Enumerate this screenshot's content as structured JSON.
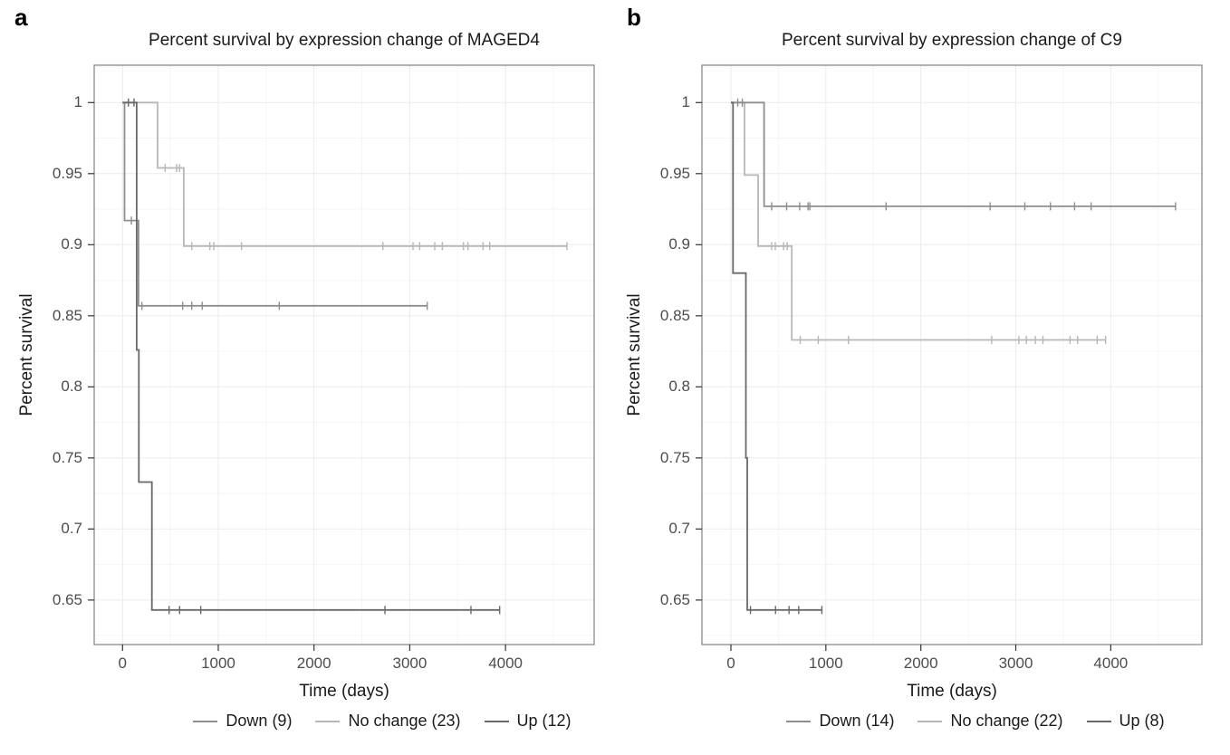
{
  "figure": {
    "description": "Kaplan-Meier percent survival curves by gene expression change, two panels"
  },
  "chart_data": [
    {
      "type": "line",
      "subtype": "kaplan-meier-step",
      "panel_label": "a",
      "title": "Percent survival by expression change of MAGED4",
      "xlabel": "Time (days)",
      "ylabel": "Percent survival",
      "xticks": [
        0,
        1000,
        2000,
        3000,
        4000
      ],
      "xtick_labels": [
        "0",
        "1000",
        "2000",
        "3000",
        "4000"
      ],
      "yticks": [
        1,
        0.95,
        0.9,
        0.85,
        0.8,
        0.75,
        0.7,
        0.65
      ],
      "ytick_labels": [
        "1",
        "0.95",
        "0.9",
        "0.85",
        "0.8",
        "0.75",
        "0.7",
        "0.65"
      ],
      "xlim": [
        -296,
        4926
      ],
      "ylim": [
        0.6187,
        1.0263
      ],
      "grid": "major-and-minor",
      "legend_position": "bottom",
      "series": [
        {
          "name": "Down (9)",
          "color": "#8e8e8e",
          "steps": [
            [
              0,
              1
            ],
            [
              21,
              1
            ],
            [
              21,
              0.917
            ],
            [
              167,
              0.917
            ],
            [
              167,
              0.857
            ],
            [
              3182,
              0.857
            ]
          ],
          "censors": [
            [
              92,
              0.917
            ],
            [
              202,
              0.857
            ],
            [
              628,
              0.857
            ],
            [
              723,
              0.857
            ],
            [
              832,
              0.857
            ],
            [
              1637,
              0.857
            ],
            [
              3182,
              0.857
            ]
          ]
        },
        {
          "name": "No change (23)",
          "color": "#b7b7b7",
          "steps": [
            [
              0,
              1
            ],
            [
              366,
              1
            ],
            [
              366,
              0.954
            ],
            [
              640,
              0.954
            ],
            [
              640,
              0.899
            ],
            [
              4642,
              0.899
            ]
          ],
          "censors": [
            [
              445,
              0.954
            ],
            [
              565,
              0.954
            ],
            [
              596,
              0.954
            ],
            [
              723,
              0.899
            ],
            [
              912,
              0.899
            ],
            [
              953,
              0.899
            ],
            [
              1243,
              0.899
            ],
            [
              2719,
              0.899
            ],
            [
              3034,
              0.899
            ],
            [
              3103,
              0.899
            ],
            [
              3261,
              0.899
            ],
            [
              3340,
              0.899
            ],
            [
              3561,
              0.899
            ],
            [
              3608,
              0.899
            ],
            [
              3765,
              0.899
            ],
            [
              3835,
              0.899
            ],
            [
              4642,
              0.899
            ]
          ]
        },
        {
          "name": "Up (12)",
          "color": "#696969",
          "steps": [
            [
              0,
              1
            ],
            [
              148,
              1
            ],
            [
              148,
              0.826
            ],
            [
              170,
              0.826
            ],
            [
              170,
              0.733
            ],
            [
              307,
              0.733
            ],
            [
              307,
              0.643
            ],
            [
              3939,
              0.643
            ]
          ],
          "censors": [
            [
              61,
              1
            ],
            [
              120,
              1
            ],
            [
              486,
              0.643
            ],
            [
              596,
              0.643
            ],
            [
              817,
              0.643
            ],
            [
              2741,
              0.643
            ],
            [
              3639,
              0.643
            ],
            [
              3939,
              0.643
            ]
          ]
        }
      ]
    },
    {
      "type": "line",
      "subtype": "kaplan-meier-step",
      "panel_label": "b",
      "title": "Percent survival by expression change of C9",
      "xlabel": "Time (days)",
      "ylabel": "Percent survival",
      "xticks": [
        0,
        1000,
        2000,
        3000,
        4000
      ],
      "xtick_labels": [
        "0",
        "1000",
        "2000",
        "3000",
        "4000"
      ],
      "yticks": [
        1,
        0.95,
        0.9,
        0.85,
        0.8,
        0.75,
        0.7,
        0.65
      ],
      "ytick_labels": [
        "1",
        "0.95",
        "0.9",
        "0.85",
        "0.8",
        "0.75",
        "0.7",
        "0.65"
      ],
      "xlim": [
        -305,
        4960
      ],
      "ylim": [
        0.6187,
        1.0263
      ],
      "grid": "major-and-minor",
      "legend_position": "bottom",
      "series": [
        {
          "name": "Down (14)",
          "color": "#8e8e8e",
          "steps": [
            [
              0,
              1
            ],
            [
              349,
              1
            ],
            [
              349,
              0.927
            ],
            [
              4682,
              0.927
            ]
          ],
          "censors": [
            [
              72,
              1
            ],
            [
              120,
              1
            ],
            [
              429,
              0.927
            ],
            [
              587,
              0.927
            ],
            [
              724,
              0.927
            ],
            [
              812,
              0.927
            ],
            [
              831,
              0.927
            ],
            [
              1634,
              0.927
            ],
            [
              2730,
              0.927
            ],
            [
              3095,
              0.927
            ],
            [
              3365,
              0.927
            ],
            [
              3619,
              0.927
            ],
            [
              3793,
              0.927
            ],
            [
              4682,
              0.927
            ]
          ]
        },
        {
          "name": "No change (22)",
          "color": "#b7b7b7",
          "steps": [
            [
              0,
              1
            ],
            [
              143,
              1
            ],
            [
              143,
              0.949
            ],
            [
              286,
              0.949
            ],
            [
              286,
              0.899
            ],
            [
              641,
              0.899
            ],
            [
              641,
              0.833
            ],
            [
              3945,
              0.833
            ]
          ],
          "censors": [
            [
              429,
              0.899
            ],
            [
              467,
              0.899
            ],
            [
              555,
              0.899
            ],
            [
              593,
              0.899
            ],
            [
              730,
              0.833
            ],
            [
              920,
              0.833
            ],
            [
              1238,
              0.833
            ],
            [
              2746,
              0.833
            ],
            [
              3032,
              0.833
            ],
            [
              3111,
              0.833
            ],
            [
              3206,
              0.833
            ],
            [
              3286,
              0.833
            ],
            [
              3571,
              0.833
            ],
            [
              3651,
              0.833
            ],
            [
              3857,
              0.833
            ],
            [
              3945,
              0.833
            ]
          ]
        },
        {
          "name": "Up (8)",
          "color": "#696969",
          "steps": [
            [
              0,
              1
            ],
            [
              22,
              1
            ],
            [
              22,
              0.88
            ],
            [
              158,
              0.88
            ],
            [
              158,
              0.75
            ],
            [
              172,
              0.75
            ],
            [
              172,
              0.643
            ],
            [
              958,
              0.643
            ]
          ],
          "censors": [
            [
              206,
              0.643
            ],
            [
              470,
              0.643
            ],
            [
              612,
              0.643
            ],
            [
              714,
              0.643
            ],
            [
              958,
              0.643
            ]
          ]
        }
      ]
    }
  ],
  "style": {
    "panel_border_color": "#828282",
    "major_grid_color": "#ebebeb",
    "minor_grid_color": "#f5f5f5",
    "tick_mark_color": "#333333",
    "tick_label_color": "#4d4d4d",
    "text_color": "#1a1a1a",
    "background": "#ffffff"
  }
}
